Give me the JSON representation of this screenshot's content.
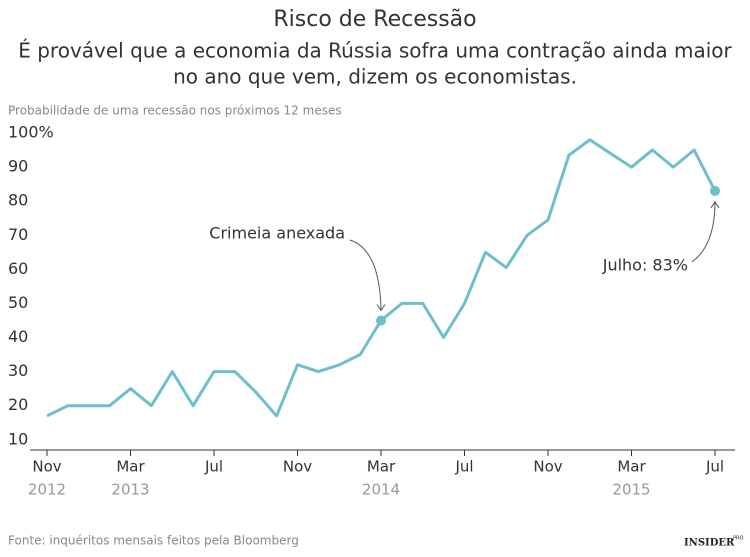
{
  "chart_data": {
    "type": "line",
    "title": "Risco de Recessão",
    "subtitle": [
      "É provável que a economia da Rússia sofra uma contração ainda maior",
      "no ano que vem, dizem os economistas."
    ],
    "y_axis_label": "Probabilidade de uma recessão nos próximos 12 meses",
    "categories": [
      "Nov",
      null,
      null,
      null,
      "Mar",
      null,
      null,
      null,
      "Jul",
      null,
      null,
      null,
      "Nov",
      null,
      null,
      null,
      "Mar",
      null,
      null,
      null,
      "Jul",
      null,
      null,
      null,
      "Nov",
      null,
      null,
      null,
      "Mar",
      null,
      null,
      null,
      "Jul"
    ],
    "years": [
      "2012",
      null,
      null,
      null,
      "2013",
      null,
      null,
      null,
      null,
      null,
      null,
      null,
      null,
      null,
      null,
      null,
      "2014",
      null,
      null,
      null,
      null,
      null,
      null,
      null,
      null,
      null,
      null,
      null,
      "2015",
      null,
      null,
      null,
      null
    ],
    "values": [
      17,
      20,
      20,
      20,
      25,
      20,
      30,
      20,
      30,
      30,
      24,
      17,
      32,
      30,
      32,
      35,
      45,
      50,
      50,
      40,
      50,
      65,
      60.5,
      70,
      74.5,
      93.5,
      98,
      94,
      90,
      95,
      90,
      95,
      83
    ],
    "color": "#6dbfc9",
    "ylim": [
      7,
      100
    ],
    "yticks": [
      {
        "value": 100,
        "label": "100%"
      },
      90,
      80,
      70,
      60,
      50,
      40,
      30,
      20,
      10
    ],
    "grid": false,
    "annotations": [
      "Crimeia anexada",
      "Julho: 83%"
    ],
    "source": "Fonte: inquéritos mensais feitos pela Bloomberg",
    "logo": {
      "main": "INSIDER",
      "sup": "PRO"
    }
  }
}
